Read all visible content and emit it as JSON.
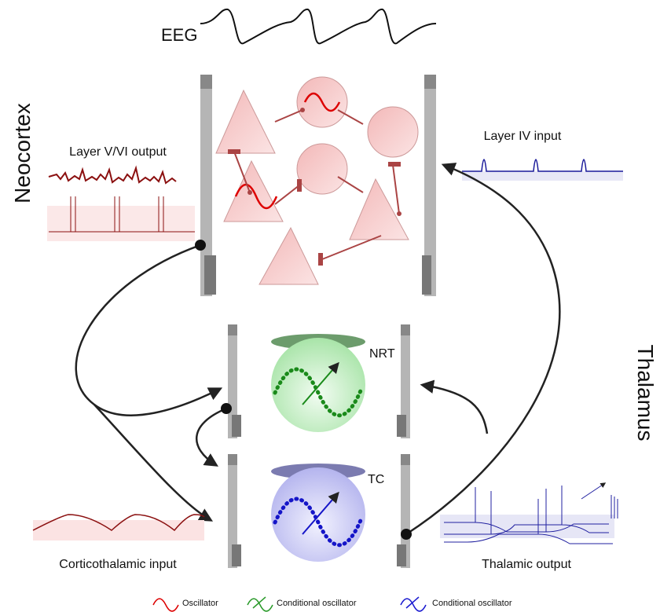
{
  "eeg": {
    "label": "EEG"
  },
  "regions": {
    "neocortex": "Neocortex",
    "thalamus": "Thalamus"
  },
  "panels": {
    "layer_v_vi_output": "Layer V/VI output",
    "layer_iv_input": "Layer IV input",
    "corticothalamic_input": "Corticothalamic input",
    "thalamic_output": "Thalamic output"
  },
  "nuclei": {
    "nrt": "NRT",
    "tc": "TC"
  },
  "legend": [
    {
      "label": "Oscillator"
    },
    {
      "label": "Conditional oscillator"
    },
    {
      "label": "Conditional oscillator"
    }
  ]
}
